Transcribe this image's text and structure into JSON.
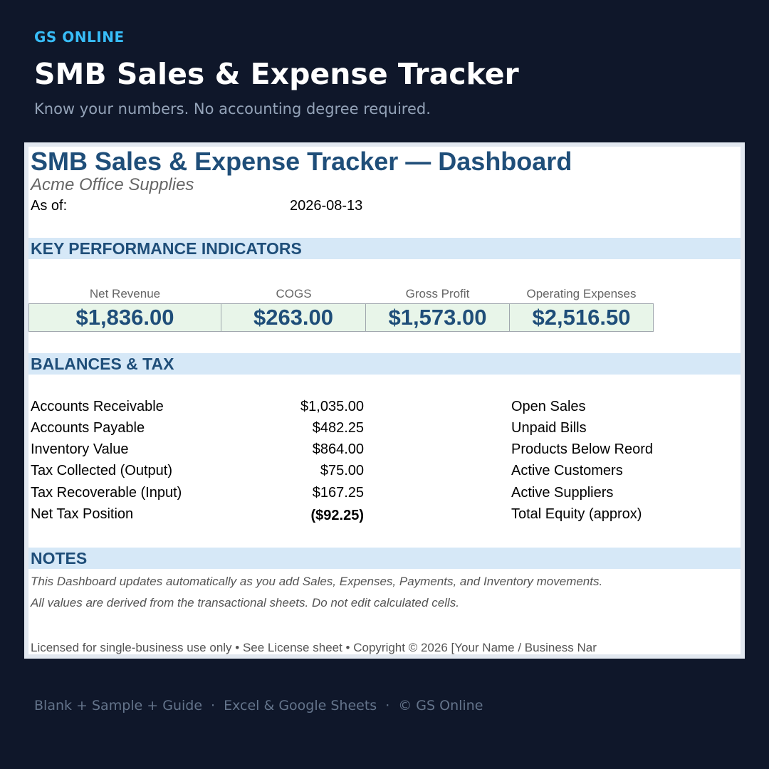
{
  "header": {
    "brand": "GS ONLINE",
    "title": "SMB Sales & Expense Tracker",
    "tagline": "Know your numbers. No accounting degree required."
  },
  "sheet": {
    "title": "SMB Sales & Expense Tracker — Dashboard",
    "company": "Acme Office Supplies",
    "as_of_label": "As of:",
    "as_of_value": "2026-08-13",
    "kpi_section": "KEY PERFORMANCE INDICATORS",
    "kpis": [
      {
        "label": "Net Revenue",
        "value": "$1,836.00"
      },
      {
        "label": "COGS",
        "value": "$263.00"
      },
      {
        "label": "Gross Profit",
        "value": "$1,573.00"
      },
      {
        "label": "Operating Expenses",
        "value": "$2,516.50"
      }
    ],
    "balances_section": "BALANCES & TAX",
    "balances": [
      {
        "label": "Accounts Receivable",
        "value": "$1,035.00",
        "right": "Open Sales"
      },
      {
        "label": "Accounts Payable",
        "value": "$482.25",
        "right": "Unpaid Bills"
      },
      {
        "label": "Inventory Value",
        "value": "$864.00",
        "right": "Products Below Reord"
      },
      {
        "label": "Tax Collected (Output)",
        "value": "$75.00",
        "right": "Active Customers"
      },
      {
        "label": "Tax Recoverable (Input)",
        "value": "$167.25",
        "right": "Active Suppliers"
      },
      {
        "label": "Net Tax Position",
        "value": "($92.25)",
        "right": "Total Equity (approx)"
      }
    ],
    "notes_section": "NOTES",
    "notes": [
      "This Dashboard updates automatically as you add Sales, Expenses, Payments, and Inventory movements.",
      "All values are derived from the transactional sheets. Do not edit calculated cells."
    ],
    "license": "Licensed for single-business use only  •  See License sheet  •  Copyright © 2026 [Your Name / Business Nar"
  },
  "footer": {
    "item1": "Blank + Sample + Guide",
    "item2": "Excel & Google Sheets",
    "item3": "© GS Online",
    "separator": "·"
  }
}
